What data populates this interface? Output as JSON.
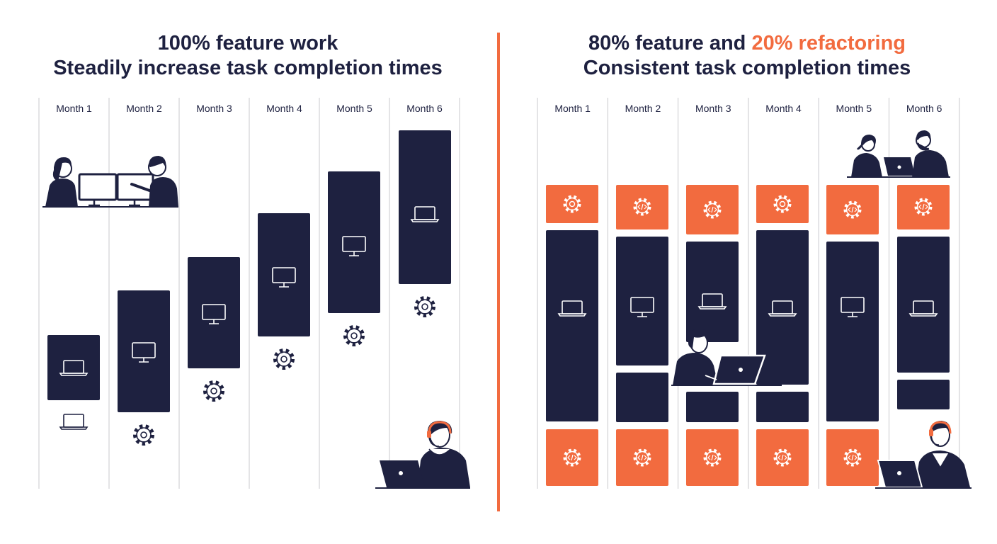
{
  "left": {
    "title_line1": "100% feature work",
    "title_line2": "Steadily increase task completion times",
    "months": [
      "Month 1",
      "Month 2",
      "Month 3",
      "Month 4",
      "Month 5",
      "Month 6"
    ]
  },
  "right": {
    "title_line1_prefix": "80% feature and ",
    "title_line1_accent": "20% refactoring",
    "title_line2": "Consistent task completion times",
    "months": [
      "Month 1",
      "Month 2",
      "Month 3",
      "Month 4",
      "Month 5",
      "Month 6"
    ]
  },
  "colors": {
    "navy": "#1e2140",
    "accent": "#f26b3f",
    "grid": "#c8c8cc"
  },
  "icons": [
    "laptop-icon",
    "monitor-icon",
    "gear-icon",
    "code-gear-icon"
  ]
}
